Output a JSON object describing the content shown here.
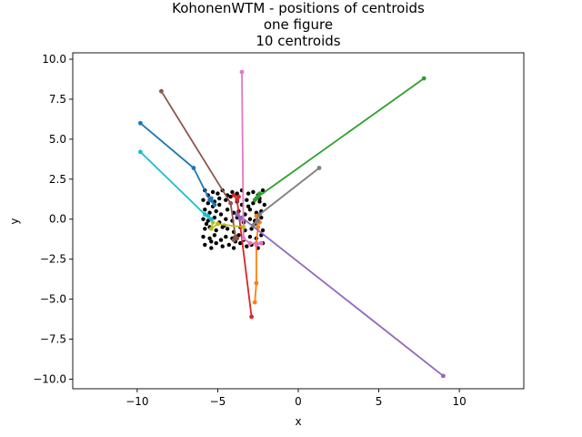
{
  "chart_data": {
    "type": "line",
    "title": [
      "KohonenWTM - positions of centroids",
      "one figure",
      "10 centroids"
    ],
    "xlabel": "x",
    "ylabel": "y",
    "xlim": [
      -14,
      14
    ],
    "ylim": [
      -10.6,
      10.4
    ],
    "xticks": [
      -10,
      -5,
      0,
      5,
      10
    ],
    "yticks": [
      10.0,
      7.5,
      5.0,
      2.5,
      0.0,
      -2.5,
      -5.0,
      -7.5,
      -10.0
    ],
    "xtick_labels": [
      "−10",
      "−5",
      "0",
      "5",
      "10"
    ],
    "ytick_labels": [
      "10.0",
      "7.5",
      "5.0",
      "2.5",
      "0.0",
      "−2.5",
      "−5.0",
      "−7.5",
      "−10.0"
    ],
    "grid": false,
    "data_color": "#000000",
    "data_points": [
      [
        -5.8,
        1.8
      ],
      [
        -5.6,
        1.5
      ],
      [
        -5.3,
        1.7
      ],
      [
        -5.0,
        1.6
      ],
      [
        -4.7,
        1.8
      ],
      [
        -4.4,
        1.5
      ],
      [
        -4.1,
        1.7
      ],
      [
        -3.8,
        1.6
      ],
      [
        -3.5,
        1.8
      ],
      [
        -3.1,
        1.6
      ],
      [
        -2.8,
        1.7
      ],
      [
        -2.5,
        1.5
      ],
      [
        -2.2,
        1.8
      ],
      [
        -5.9,
        1.2
      ],
      [
        -5.6,
        1.0
      ],
      [
        -5.2,
        1.1
      ],
      [
        -4.9,
        0.9
      ],
      [
        -4.5,
        1.2
      ],
      [
        -4.2,
        1.0
      ],
      [
        -3.8,
        1.1
      ],
      [
        -3.5,
        0.9
      ],
      [
        -3.2,
        1.2
      ],
      [
        -2.8,
        1.0
      ],
      [
        -2.4,
        1.1
      ],
      [
        -2.1,
        0.9
      ],
      [
        -5.8,
        0.6
      ],
      [
        -5.5,
        0.4
      ],
      [
        -5.1,
        0.5
      ],
      [
        -4.8,
        0.3
      ],
      [
        -4.4,
        0.6
      ],
      [
        -4.0,
        0.4
      ],
      [
        -3.7,
        0.5
      ],
      [
        -3.3,
        0.3
      ],
      [
        -3.0,
        0.6
      ],
      [
        -2.6,
        0.4
      ],
      [
        -2.3,
        0.5
      ],
      [
        -5.9,
        0.0
      ],
      [
        -5.6,
        -0.1
      ],
      [
        -5.2,
        0.1
      ],
      [
        -4.9,
        -0.2
      ],
      [
        -4.5,
        0.0
      ],
      [
        -4.1,
        -0.1
      ],
      [
        -3.8,
        0.1
      ],
      [
        -3.4,
        -0.2
      ],
      [
        -3.0,
        0.0
      ],
      [
        -2.7,
        -0.1
      ],
      [
        -2.3,
        0.1
      ],
      [
        -5.8,
        -0.6
      ],
      [
        -5.5,
        -0.5
      ],
      [
        -5.1,
        -0.7
      ],
      [
        -4.7,
        -0.5
      ],
      [
        -4.4,
        -0.6
      ],
      [
        -4.0,
        -0.8
      ],
      [
        -3.6,
        -0.5
      ],
      [
        -3.3,
        -0.7
      ],
      [
        -2.9,
        -0.6
      ],
      [
        -2.5,
        -0.5
      ],
      [
        -2.2,
        -0.7
      ],
      [
        -5.9,
        -1.1
      ],
      [
        -5.5,
        -1.2
      ],
      [
        -5.2,
        -1.0
      ],
      [
        -4.8,
        -1.3
      ],
      [
        -4.5,
        -1.1
      ],
      [
        -4.1,
        -1.2
      ],
      [
        -3.7,
        -1.0
      ],
      [
        -3.4,
        -1.3
      ],
      [
        -3.0,
        -1.1
      ],
      [
        -2.6,
        -1.2
      ],
      [
        -2.3,
        -1.0
      ],
      [
        -5.8,
        -1.6
      ],
      [
        -5.4,
        -1.8
      ],
      [
        -5.1,
        -1.5
      ],
      [
        -4.7,
        -1.7
      ],
      [
        -4.3,
        -1.6
      ],
      [
        -4.0,
        -1.8
      ],
      [
        -3.6,
        -1.5
      ],
      [
        -3.2,
        -1.7
      ],
      [
        -2.9,
        -1.6
      ],
      [
        -2.5,
        -1.8
      ],
      [
        -2.2,
        -1.5
      ],
      [
        -5.7,
        -0.3
      ],
      [
        -5.3,
        0.8
      ],
      [
        -4.6,
        -0.4
      ],
      [
        -4.2,
        1.4
      ],
      [
        -3.9,
        -1.4
      ],
      [
        -3.1,
        0.8
      ],
      [
        -2.7,
        -0.3
      ],
      [
        -2.4,
        1.3
      ],
      [
        -5.4,
        -1.4
      ],
      [
        -4.9,
        1.3
      ]
    ],
    "series": [
      {
        "color": "#1f77b4",
        "points": [
          [
            -9.8,
            6.0
          ],
          [
            -6.5,
            3.2
          ],
          [
            -5.5,
            1.2
          ],
          [
            -5.2,
            0.9
          ],
          [
            -5.4,
            1.3
          ]
        ]
      },
      {
        "color": "#ff7f0e",
        "points": [
          [
            -2.7,
            -5.2
          ],
          [
            -2.6,
            -4.0
          ],
          [
            -2.6,
            -1.5
          ],
          [
            -2.5,
            -0.5
          ],
          [
            -2.6,
            0.2
          ],
          [
            -2.4,
            -0.2
          ]
        ]
      },
      {
        "color": "#2ca02c",
        "points": [
          [
            7.8,
            8.8
          ],
          [
            -2.5,
            1.4
          ],
          [
            -2.7,
            1.2
          ],
          [
            -2.4,
            1.6
          ],
          [
            -2.6,
            1.3
          ]
        ]
      },
      {
        "color": "#d62728",
        "points": [
          [
            -2.9,
            -6.1
          ],
          [
            -3.8,
            1.2
          ],
          [
            -4.0,
            1.5
          ],
          [
            -3.7,
            1.4
          ]
        ]
      },
      {
        "color": "#9467bd",
        "points": [
          [
            9.0,
            -9.8
          ],
          [
            -3.5,
            0.1
          ],
          [
            -3.8,
            0.3
          ],
          [
            -3.6,
            0.0
          ]
        ]
      },
      {
        "color": "#8c564b",
        "points": [
          [
            -8.5,
            8.0
          ],
          [
            -4.2,
            1.0
          ],
          [
            -3.9,
            -1.1
          ],
          [
            -4.0,
            -1.3
          ],
          [
            -3.8,
            -1.2
          ]
        ]
      },
      {
        "color": "#e377c2",
        "points": [
          [
            -3.5,
            9.2
          ],
          [
            -3.4,
            -1.2
          ],
          [
            -3.0,
            -1.5
          ],
          [
            -2.3,
            -1.5
          ],
          [
            -2.6,
            -1.6
          ]
        ]
      },
      {
        "color": "#7f7f7f",
        "points": [
          [
            1.3,
            3.2
          ],
          [
            -2.4,
            0.3
          ],
          [
            -2.8,
            -0.4
          ],
          [
            -2.5,
            -0.1
          ]
        ]
      },
      {
        "color": "#bcbd22",
        "points": [
          [
            -3.4,
            -0.5
          ],
          [
            -5.0,
            -0.3
          ],
          [
            -5.4,
            -0.6
          ],
          [
            -5.3,
            -0.2
          ]
        ]
      },
      {
        "color": "#17becf",
        "points": [
          [
            -9.8,
            4.2
          ],
          [
            -5.8,
            0.3
          ],
          [
            -5.4,
            0.0
          ],
          [
            -5.6,
            0.2
          ]
        ]
      }
    ]
  }
}
